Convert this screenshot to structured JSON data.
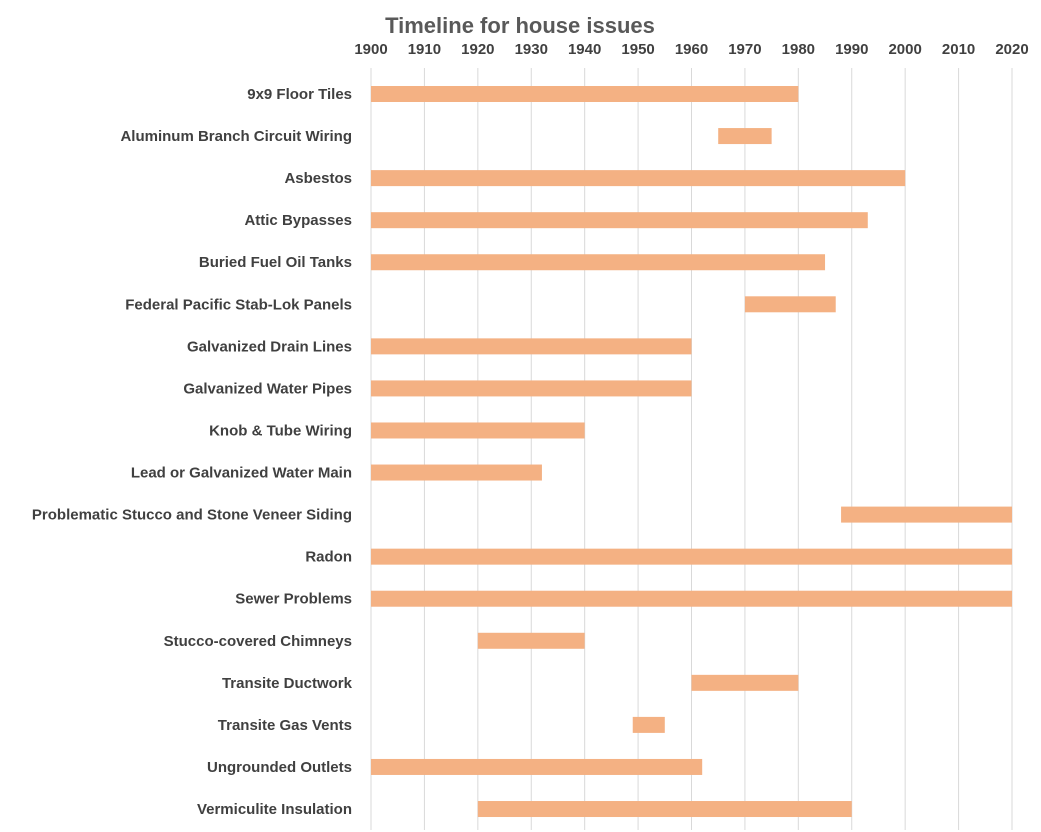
{
  "chart_data": {
    "type": "bar",
    "orientation": "horizontal-floating",
    "title": "Timeline for house issues",
    "xlabel": "",
    "ylabel": "",
    "xlim": [
      1900,
      2020
    ],
    "xticks": [
      "1900",
      "1910",
      "1920",
      "1930",
      "1940",
      "1950",
      "1960",
      "1970",
      "1980",
      "1990",
      "2000",
      "2010",
      "2020"
    ],
    "x_axis_position": "top",
    "grid": true,
    "legend": "none",
    "color": "#f4b183",
    "categories": [
      "9x9 Floor Tiles",
      "Aluminum Branch Circuit Wiring",
      "Asbestos",
      "Attic Bypasses",
      "Buried Fuel Oil Tanks",
      "Federal Pacific Stab-Lok  Panels",
      "Galvanized Drain Lines",
      "Galvanized Water Pipes",
      "Knob & Tube Wiring",
      "Lead or Galvanized Water Main",
      "Problematic Stucco and Stone Veneer Siding",
      "Radon",
      "Sewer Problems",
      "Stucco-covered Chimneys",
      "Transite Ductwork",
      "Transite Gas Vents",
      "Ungrounded Outlets",
      "Vermiculite Insulation"
    ],
    "ranges": [
      [
        1900,
        1980
      ],
      [
        1965,
        1975
      ],
      [
        1900,
        2000
      ],
      [
        1900,
        1993
      ],
      [
        1900,
        1985
      ],
      [
        1970,
        1987
      ],
      [
        1900,
        1960
      ],
      [
        1900,
        1960
      ],
      [
        1900,
        1940
      ],
      [
        1900,
        1932
      ],
      [
        1988,
        2020
      ],
      [
        1900,
        2020
      ],
      [
        1900,
        2020
      ],
      [
        1920,
        1940
      ],
      [
        1960,
        1980
      ],
      [
        1949,
        1955
      ],
      [
        1900,
        1962
      ],
      [
        1920,
        1990
      ]
    ]
  }
}
